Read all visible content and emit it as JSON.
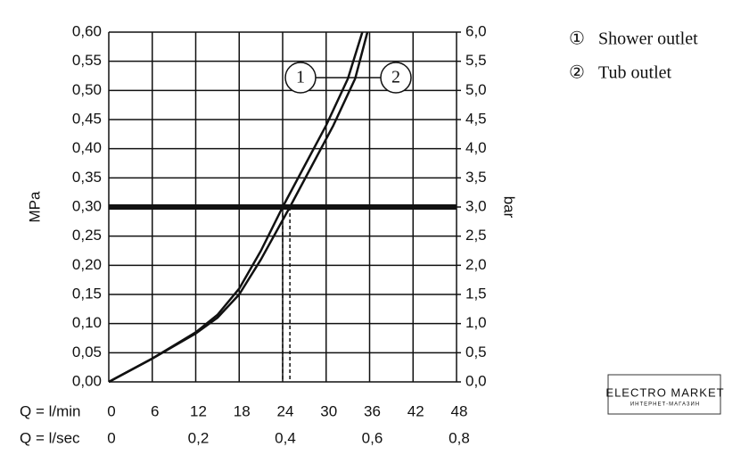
{
  "chart_data": {
    "type": "line",
    "ylabel": "MPa",
    "y2label": "bar",
    "xlabel": "Q = l/min",
    "x2label": "Q = l/sec",
    "xlim": [
      0,
      48
    ],
    "xticks": [
      0,
      6,
      12,
      18,
      24,
      30,
      36,
      42,
      48
    ],
    "x2lim": [
      0,
      0.8
    ],
    "x2ticks": [
      0,
      {
        "value": 0.2,
        "label": "0,2"
      },
      {
        "value": 0.4,
        "label": "0,4"
      },
      {
        "value": 0.6,
        "label": "0,6"
      },
      {
        "value": 0.8,
        "label": "0,8"
      }
    ],
    "ylim": [
      0,
      0.6
    ],
    "yticks": [
      {
        "value": 0,
        "label": "0,00"
      },
      {
        "value": 0.05,
        "label": "0,05"
      },
      {
        "value": 0.1,
        "label": "0,10"
      },
      {
        "value": 0.15,
        "label": "0,15"
      },
      {
        "value": 0.2,
        "label": "0,20"
      },
      {
        "value": 0.25,
        "label": "0,25"
      },
      {
        "value": 0.3,
        "label": "0,30"
      },
      {
        "value": 0.35,
        "label": "0,35"
      },
      {
        "value": 0.4,
        "label": "0,40"
      },
      {
        "value": 0.45,
        "label": "0,45"
      },
      {
        "value": 0.5,
        "label": "0,50"
      },
      {
        "value": 0.55,
        "label": "0,55"
      },
      {
        "value": 0.6,
        "label": "0,60"
      }
    ],
    "y2lim": [
      0,
      6
    ],
    "y2ticks": [
      {
        "value": 0,
        "label": "0,0"
      },
      {
        "value": 0.5,
        "label": "0,5"
      },
      {
        "value": 1,
        "label": "1,0"
      },
      {
        "value": 1.5,
        "label": "1,5"
      },
      {
        "value": 2,
        "label": "2,0"
      },
      {
        "value": 2.5,
        "label": "2,5"
      },
      {
        "value": 3,
        "label": "3,0"
      },
      {
        "value": 3.5,
        "label": "3,5"
      },
      {
        "value": 4,
        "label": "4,0"
      },
      {
        "value": 4.5,
        "label": "4,5"
      },
      {
        "value": 5,
        "label": "5,0"
      },
      {
        "value": 5.5,
        "label": "5,5"
      },
      {
        "value": 6,
        "label": "6,0"
      }
    ],
    "grid": true,
    "reference_line": 0.3,
    "crossings": [
      24,
      25
    ],
    "series": [
      {
        "name": "Shower outlet",
        "marker": "①",
        "callout": "1",
        "color": "#111111",
        "x": [
          0,
          6,
          12,
          15,
          18,
          21,
          24,
          27,
          30,
          33,
          35
        ],
        "values": [
          0,
          0.04,
          0.085,
          0.115,
          0.16,
          0.225,
          0.3,
          0.37,
          0.44,
          0.52,
          0.6
        ]
      },
      {
        "name": "Tub outlet",
        "marker": "②",
        "callout": "2",
        "color": "#111111",
        "x": [
          0,
          6,
          12,
          15,
          18,
          21,
          25,
          28,
          31,
          34,
          35.7
        ],
        "values": [
          0,
          0.04,
          0.083,
          0.11,
          0.15,
          0.21,
          0.3,
          0.37,
          0.44,
          0.52,
          0.6
        ]
      }
    ]
  },
  "watermark": {
    "title": "ELECTRO MARKET",
    "subtitle": "ИНТЕРНЕТ-МАГАЗИН"
  }
}
